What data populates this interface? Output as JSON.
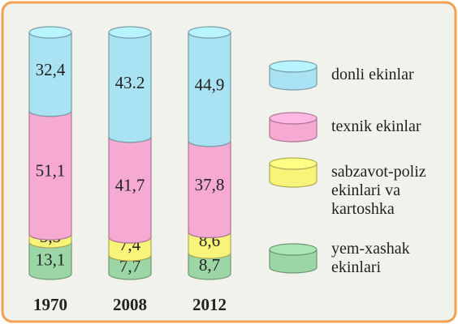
{
  "chart_data": {
    "type": "stacked-cylinder",
    "categories": [
      "1970",
      "2008",
      "2012"
    ],
    "series": [
      {
        "name": "yem-xashak ekinlari",
        "color": "#9cd6a6",
        "values": [
          13.1,
          7.7,
          8.7
        ],
        "value_labels": [
          "13,1",
          "7,7",
          "8,7"
        ]
      },
      {
        "name": "sabzavot-poliz ekinlari va kartoshka",
        "color": "#f8f47a",
        "values": [
          3.3,
          7.4,
          8.6
        ],
        "value_labels": [
          "3,3",
          "7,4",
          "8,6"
        ]
      },
      {
        "name": "texnik ekinlar",
        "color": "#f6a9d2",
        "values": [
          51.1,
          41.7,
          37.8
        ],
        "value_labels": [
          "51,1",
          "41,7",
          "37,8"
        ]
      },
      {
        "name": "donli ekinlar",
        "color": "#a9e2f2",
        "values": [
          32.4,
          43.2,
          44.9
        ],
        "value_labels": [
          "32,4",
          "43.2",
          "44,9"
        ]
      }
    ]
  }
}
